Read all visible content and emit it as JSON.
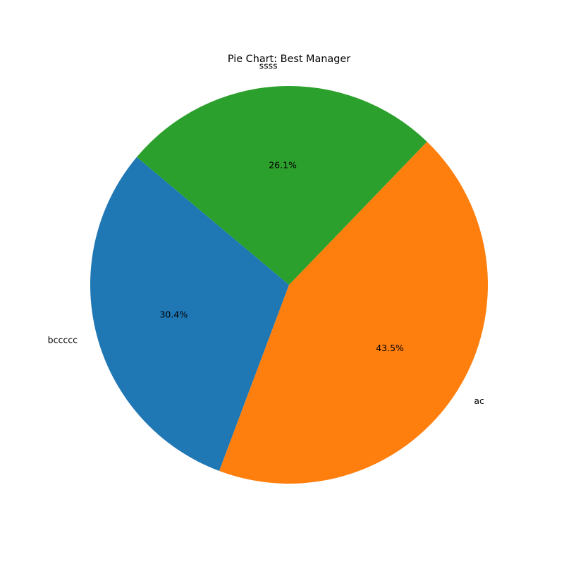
{
  "chart_data": {
    "type": "pie",
    "title": "Pie Chart: Best Manager",
    "categories": [
      "bccccc",
      "ac",
      "ssss"
    ],
    "values": [
      30.4,
      43.5,
      26.1
    ],
    "percent_labels": [
      "30.4%",
      "43.5%",
      "26.1%"
    ],
    "colors": [
      "#1f77b4",
      "#ff7f0e",
      "#2ca02c"
    ],
    "start_angle_deg": 140,
    "direction": "counterclockwise"
  }
}
